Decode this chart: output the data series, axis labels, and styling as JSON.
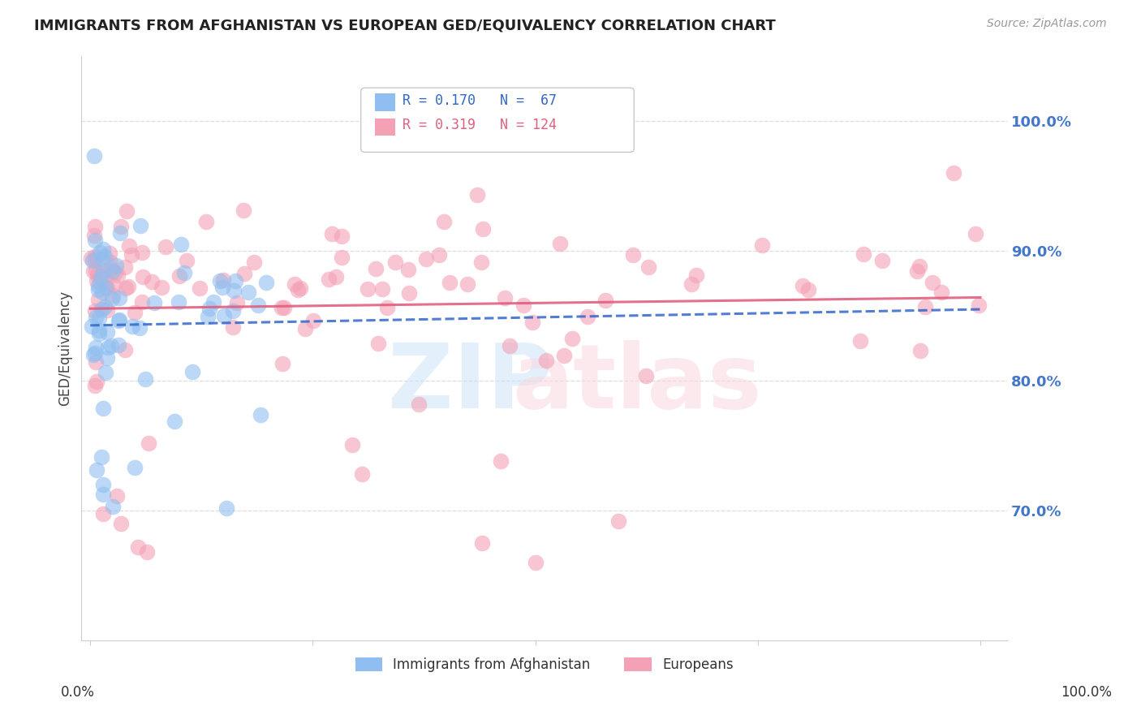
{
  "title": "IMMIGRANTS FROM AFGHANISTAN VS EUROPEAN GED/EQUIVALENCY CORRELATION CHART",
  "source": "Source: ZipAtlas.com",
  "ylabel": "GED/Equivalency",
  "ytick_values": [
    0.7,
    0.8,
    0.9,
    1.0
  ],
  "ytick_labels": [
    "70.0%",
    "80.0%",
    "90.0%",
    "100.0%"
  ],
  "xlim": [
    -0.01,
    1.03
  ],
  "ylim": [
    0.6,
    1.05
  ],
  "color_blue": "#90BEF0",
  "color_pink": "#F4A0B5",
  "trendline_blue": "#3366CC",
  "trendline_pink": "#E06080",
  "label_blue": "Immigrants from Afghanistan",
  "label_pink": "Europeans",
  "legend_text_blue": "R = 0.170   N =  67",
  "legend_text_pink": "R = 0.319   N = 124"
}
